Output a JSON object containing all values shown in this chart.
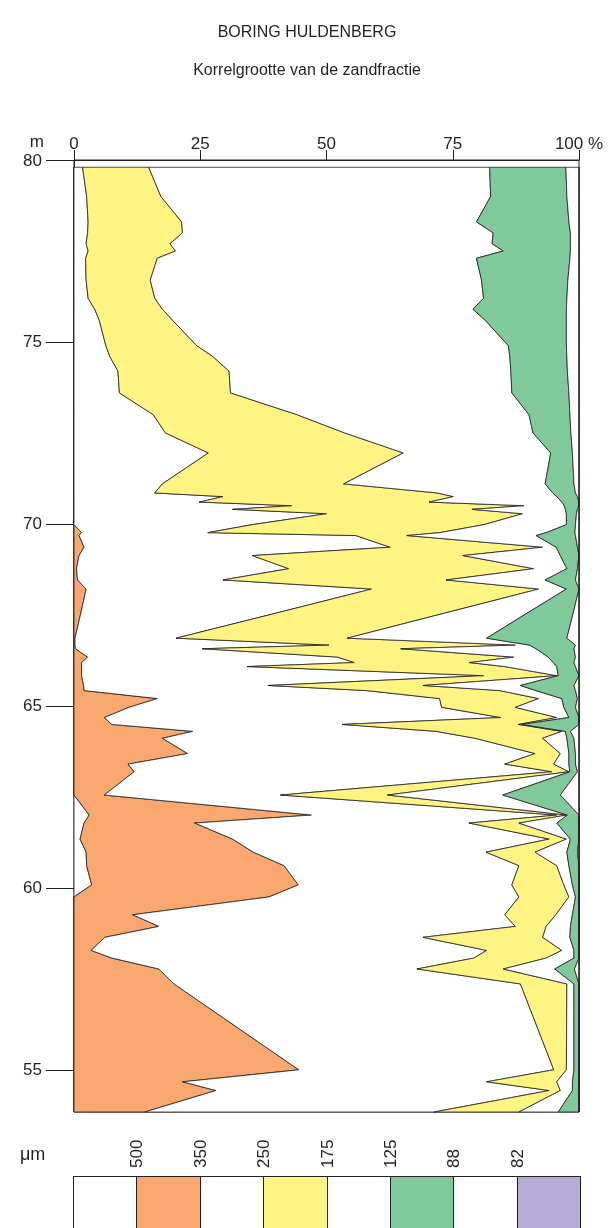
{
  "chart_data": {
    "type": "area",
    "stacked": true,
    "orientation": "horizontal",
    "grid": false,
    "title": "BORING HULDENBERG",
    "subtitle": "Korrelgrootte van de zandfractie",
    "ylabel": "m",
    "xlim": [
      0,
      100
    ],
    "xticks": [
      0,
      25,
      50,
      75,
      {
        "value": 100,
        "label": "100 %"
      }
    ],
    "ylim": [
      53.84,
      80
    ],
    "yticks": [
      55,
      60,
      65,
      70,
      75,
      80
    ],
    "annotations": [
      "μm",
      "500",
      "350",
      "250",
      "175",
      "125",
      "88",
      "82"
    ],
    "x": [
      79.8,
      79.0,
      78.3,
      78.0,
      77.7,
      77.5,
      77.3,
      76.7,
      76.2,
      75.9,
      75.6,
      74.9,
      74.6,
      74.2,
      73.6,
      73.0,
      72.5,
      71.95,
      71.1,
      70.85,
      70.75,
      70.6,
      70.5,
      70.4,
      70.28,
      69.98,
      69.76,
      69.68,
      69.36,
      69.13,
      68.77,
      68.46,
      68.21,
      67.52,
      66.86,
      66.67,
      66.57,
      66.34,
      66.19,
      66.08,
      65.83,
      65.56,
      65.42,
      65.2,
      64.96,
      64.68,
      64.49,
      64.3,
      64.11,
      63.69,
      63.4,
      63.19,
      62.55,
      62.0,
      61.78,
      61.34,
      60.98,
      60.61,
      60.08,
      59.75,
      59.26,
      58.94,
      58.64,
      58.28,
      58.07,
      57.77,
      57.36,
      55.0,
      54.67,
      54.43,
      53.84
    ],
    "series": [
      {
        "color": "#ffffff",
        "values": [
          0,
          0,
          0,
          0,
          0,
          0,
          0,
          0,
          0,
          0,
          0,
          0,
          0,
          0,
          0,
          0,
          0,
          0,
          0,
          0,
          0,
          0,
          0,
          0,
          0,
          0,
          0,
          0,
          0,
          0,
          0,
          0,
          0,
          0,
          0,
          0,
          0,
          0,
          0,
          0,
          0,
          0,
          0,
          0,
          0,
          0,
          0,
          0,
          0,
          0,
          0,
          0,
          0,
          3.0,
          2.0,
          1.2,
          2.4,
          2.5,
          3.5,
          0,
          0,
          0,
          0,
          0,
          0,
          0,
          0,
          0,
          0,
          0,
          0
        ]
      },
      {
        "color": "#f8a76e",
        "values": [
          0,
          0,
          0,
          0,
          0,
          0,
          0,
          0,
          0,
          0,
          0,
          0,
          0,
          0,
          0,
          0,
          0,
          0,
          0,
          0,
          0,
          0,
          0,
          0,
          0,
          0,
          1.5,
          1.0,
          2.0,
          1.0,
          0.5,
          0.7,
          2.4,
          1.3,
          0.2,
          0.2,
          0.3,
          2.7,
          1.5,
          1.5,
          1.5,
          1.9,
          2.0,
          16.5,
          10.9,
          6.0,
          7.5,
          23.5,
          17.5,
          22.5,
          10.7,
          11.9,
          6.0,
          44.0,
          21.9,
          30.2,
          33.1,
          39.1,
          40.9,
          38.6,
          11.6,
          16.8,
          6.1,
          3.4,
          7.5,
          16.8,
          19.8,
          44.5,
          21.5,
          28.1,
          14.0
        ]
      },
      {
        "color": "#ffffff",
        "values": [
          1.7,
          2.5,
          2.8,
          2.7,
          2.4,
          2.8,
          2.3,
          2.4,
          2.8,
          4.1,
          5.0,
          6.3,
          7.1,
          8.7,
          9.0,
          15.7,
          18.1,
          26.6,
          17.5,
          16.0,
          29.5,
          24.8,
          43.1,
          31.4,
          50.0,
          35.3,
          25.0,
          54.8,
          60.6,
          34.3,
          42.0,
          28.8,
          56.5,
          37.9,
          20.0,
          50.3,
          25.1,
          49.5,
          54.0,
          32.8,
          79.6,
          36.5,
          55.9,
          55.9,
          61.9,
          78.5,
          45.6,
          48.2,
          61.9,
          68.8,
          74.6,
          82.7,
          34.9,
          48.6,
          54.3,
          62.7,
          46.1,
          46.5,
          42.3,
          49.5,
          73.7,
          70.6,
          63.0,
          78.3,
          71.7,
          51.1,
          68.6,
          50.5,
          60.2,
          66.0,
          57.3
        ]
      },
      {
        "color": "#fff382",
        "values": [
          13.1,
          14.7,
          18.5,
          18.8,
          16.6,
          17.3,
          14.2,
          12.7,
          13.2,
          13.4,
          14.5,
          18.0,
          20.4,
          22.0,
          22.0,
          28.5,
          35.5,
          38.6,
          35.9,
          56.0,
          45.6,
          45.5,
          46.0,
          47.4,
          38.8,
          45.9,
          45.9,
          10.1,
          30.2,
          41.7,
          48.5,
          44.2,
          33.1,
          33.4,
          33.9,
          36.9,
          39.3,
          34.9,
          22.8,
          51.0,
          14.5,
          30.7,
          26.4,
          19.6,
          14.6,
          11.1,
          34.9,
          24.9,
          13.4,
          5.0,
          9.7,
          3.4,
          21.2,
          2.0,
          9.9,
          3.4,
          9.7,
          7.5,
          10.3,
          9.9,
          10.1,
          6.1,
          23.7,
          14.9,
          14.3,
          17.1,
          9.2,
          2.5,
          13.9,
          2.2,
          16.8
        ]
      },
      {
        "color": "#ffffff",
        "values": [
          67.5,
          65.3,
          58.4,
          61.5,
          63.8,
          64.9,
          63.2,
          65.6,
          65.1,
          61.5,
          61.9,
          61.7,
          58.8,
          55.8,
          55.7,
          45.9,
          37.3,
          29.2,
          39.9,
          22.8,
          20.5,
          26.3,
          8.0,
          18.5,
          8.7,
          16.3,
          21.1,
          25.6,
          2.7,
          19.3,
          6.6,
          19.6,
          5.5,
          16.8,
          27.6,
          2.8,
          26.8,
          6.8,
          16.6,
          10.3,
          0.3,
          19.3,
          7.2,
          4.6,
          9.6,
          2.4,
          0.7,
          0.7,
          4.8,
          1.7,
          3.0,
          0.2,
          22.8,
          0.1,
          7.5,
          0.8,
          6.3,
          2.4,
          1.7,
          1.3,
          3.3,
          4.8,
          5.4,
          2.4,
          5.5,
          10.2,
          1.4,
          1.5,
          3.1,
          2.4,
          7.8
        ]
      },
      {
        "color": "#80c99b",
        "values": [
          15.1,
          15.1,
          18.3,
          15.3,
          15.5,
          13.3,
          18.5,
          17.1,
          16.5,
          18.5,
          16.1,
          11.5,
          11.3,
          11.2,
          11.3,
          8.1,
          7.5,
          4.3,
          5.7,
          4.5,
          4.1,
          3.4,
          2.9,
          2.4,
          2.0,
          1.8,
          5.7,
          7.8,
          4.2,
          3.7,
          2.1,
          6.0,
          2.5,
          9.4,
          15.9,
          9.1,
          7.5,
          5.4,
          4.1,
          3.7,
          4.1,
          10.6,
          7.8,
          3.1,
          2.3,
          2.0,
          11.3,
          1.0,
          1.4,
          1.3,
          1.3,
          1.5,
          11.4,
          2.3,
          4.4,
          1.7,
          2.1,
          2.0,
          1.3,
          0.7,
          1.3,
          1.7,
          1.8,
          1.0,
          1.0,
          3.9,
          1.0,
          1.0,
          1.3,
          1.3,
          4.1
        ]
      },
      {
        "color": "#ffffff",
        "values": [
          2.6,
          2.4,
          2.0,
          1.7,
          1.7,
          1.7,
          1.8,
          2.2,
          2.4,
          2.5,
          2.5,
          2.5,
          2.4,
          2.3,
          2.0,
          1.8,
          1.6,
          1.3,
          1.0,
          0.7,
          0.3,
          0,
          0,
          0.3,
          0.5,
          0.7,
          0.8,
          0.7,
          0.3,
          0,
          0.3,
          0.7,
          0,
          1.2,
          2.4,
          0.7,
          1.0,
          0.7,
          1.0,
          0.7,
          0,
          1.0,
          0.7,
          0.3,
          0.7,
          0,
          0,
          1.7,
          1.0,
          0.7,
          0.7,
          0.3,
          3.7,
          0,
          0,
          0,
          0.3,
          0,
          0,
          0,
          0,
          0,
          0,
          0,
          0,
          0.9,
          0,
          0,
          0,
          0,
          0
        ]
      },
      {
        "color": "#b7acd3",
        "values": [
          null,
          null,
          null,
          null,
          null,
          null,
          null,
          null,
          null,
          null,
          null,
          null,
          null,
          null,
          null,
          null,
          null,
          null,
          null,
          null,
          null,
          null,
          null,
          null,
          null,
          null,
          null,
          null,
          null,
          null,
          null,
          null,
          null,
          null,
          null,
          null,
          null,
          null,
          null,
          null,
          null,
          null,
          null,
          null,
          null,
          null,
          null,
          null,
          null,
          null,
          null,
          null,
          null,
          null,
          null,
          null,
          null,
          null,
          null,
          null,
          null,
          null,
          null,
          null,
          null,
          null,
          null,
          null,
          null,
          null,
          null
        ]
      }
    ]
  }
}
